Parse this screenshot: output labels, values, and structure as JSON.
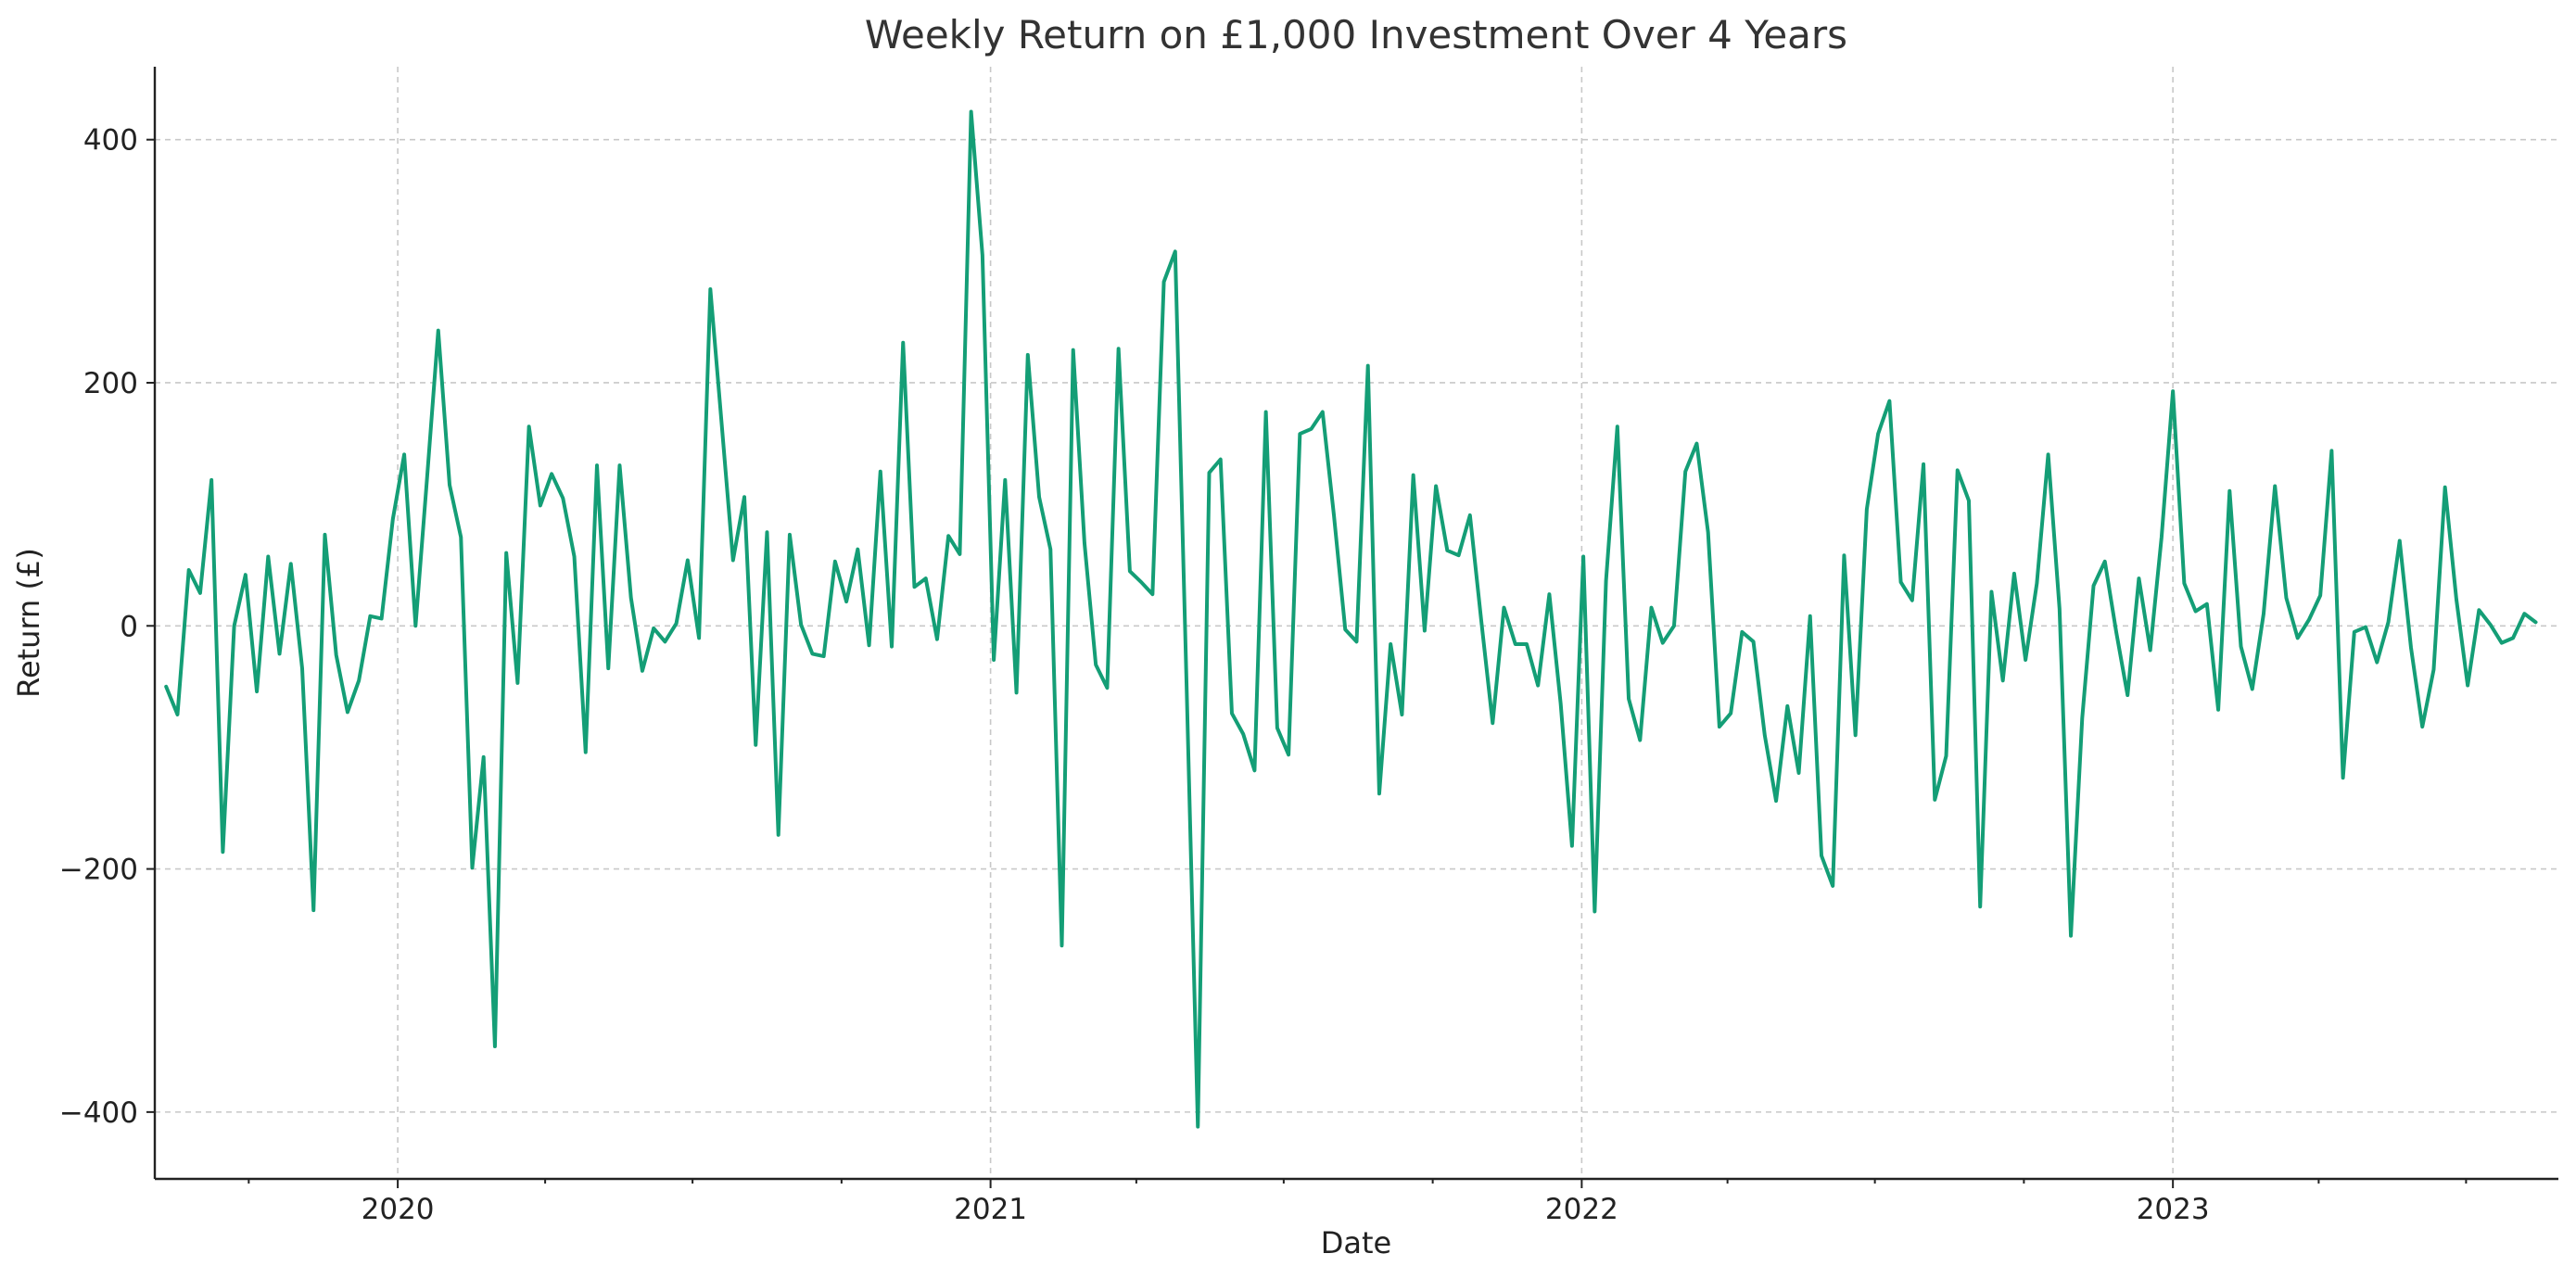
{
  "chart_data": {
    "type": "line",
    "title": "Weekly Return on £1,000 Investment Over 4 Years",
    "xlabel": "Date",
    "ylabel": "Return (£)",
    "x_range": [
      "2019-08-04",
      "2023-08-27"
    ],
    "ylim": [
      -455,
      460
    ],
    "x_ticks": [
      {
        "label": "2020",
        "date": "2020-01-01"
      },
      {
        "label": "2021",
        "date": "2021-01-01"
      },
      {
        "label": "2022",
        "date": "2022-01-01"
      },
      {
        "label": "2023",
        "date": "2023-01-01"
      }
    ],
    "minor_x_ticks": [
      "2019-10-01",
      "2020-04-01",
      "2020-07-01",
      "2020-10-01",
      "2021-04-01",
      "2021-07-01",
      "2021-10-01",
      "2022-04-01",
      "2022-07-01",
      "2022-10-01",
      "2023-04-01",
      "2023-07-01"
    ],
    "y_ticks": [
      {
        "label": "−400",
        "value": -400
      },
      {
        "label": "−200",
        "value": -200
      },
      {
        "label": "0",
        "value": 0
      },
      {
        "label": "200",
        "value": 200
      },
      {
        "label": "400",
        "value": 400
      }
    ],
    "grid": true,
    "color": "#149e76",
    "series": [
      {
        "start_date": "2019-08-11",
        "interval_days": 7,
        "values": [
          -50,
          -73,
          46,
          27,
          120,
          -186,
          0,
          42,
          -54,
          57,
          -23,
          51,
          -35,
          -234,
          75,
          -24,
          -71,
          -45,
          8,
          6,
          88,
          141,
          0,
          120,
          243,
          116,
          73,
          -199,
          -108,
          -346,
          60,
          -47,
          164,
          99,
          125,
          105,
          57,
          -104,
          132,
          -35,
          132,
          23,
          -37,
          -2,
          -13,
          2,
          54,
          -10,
          277,
          166,
          54,
          106,
          -98,
          77,
          -172,
          75,
          1,
          -23,
          -25,
          53,
          20,
          63,
          -16,
          127,
          -17,
          233,
          32,
          39,
          -11,
          74,
          59,
          423,
          305,
          -28,
          120,
          -55,
          223,
          106,
          63,
          -263,
          227,
          68,
          -32,
          -51,
          228,
          45,
          36,
          26,
          283,
          308,
          -47,
          -412,
          126,
          137,
          -72,
          -89,
          -119,
          176,
          -84,
          -106,
          158,
          162,
          176,
          91,
          -3,
          -13,
          214,
          -138,
          -15,
          -73,
          124,
          -4,
          115,
          62,
          58,
          91,
          4,
          -80,
          15,
          -15,
          -15,
          -49,
          26,
          -64,
          -181,
          57,
          -235,
          37,
          164,
          -60,
          -94,
          15,
          -14,
          0,
          127,
          150,
          77,
          -83,
          -72,
          -5,
          -13,
          -90,
          -144,
          -66,
          -121,
          8,
          -189,
          -214,
          58,
          -90,
          96,
          158,
          185,
          36,
          21,
          133,
          -143,
          -107,
          128,
          103,
          -231,
          28,
          -45,
          43,
          -28,
          35,
          141,
          14,
          -255,
          -76,
          33,
          53,
          -5,
          -57,
          39,
          -20,
          73,
          193,
          35,
          12,
          18,
          -69,
          111,
          -17,
          -52,
          10,
          115,
          23,
          -10,
          5,
          25,
          144,
          -125,
          -5,
          -1,
          -30,
          3,
          70,
          -18,
          -83,
          -36,
          114,
          22,
          -49,
          13,
          1,
          -14,
          -10,
          10,
          3
        ]
      }
    ]
  }
}
